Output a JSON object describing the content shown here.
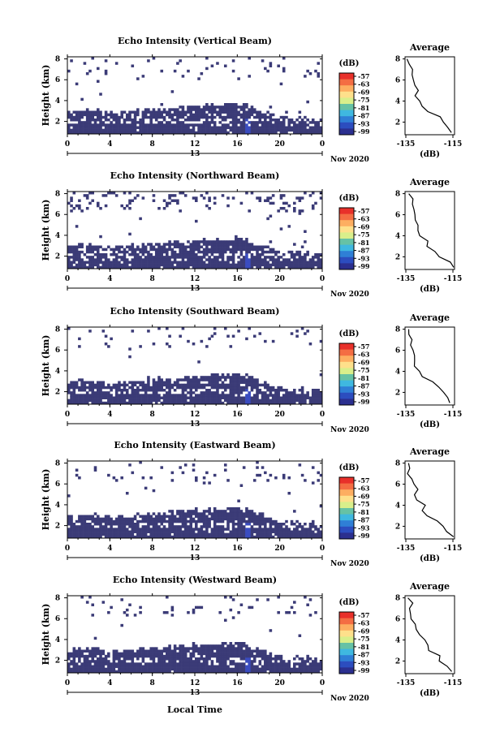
{
  "panels": [
    {
      "title": "Echo Intensity (Vertical Beam)",
      "seed": 11
    },
    {
      "title": "Echo Intensity (Northward Beam)",
      "seed": 23
    },
    {
      "title": "Echo Intensity (Southward Beam)",
      "seed": 37
    },
    {
      "title": "Echo Intensity (Eastward Beam)",
      "seed": 41
    },
    {
      "title": "Echo Intensity (Westward Beam)",
      "seed": 53
    }
  ],
  "ylabel": "Height (km)",
  "xlabel": "Local Time",
  "date_label": "Nov 2020",
  "day_label": "13",
  "colorbar": {
    "unit": "(dB)",
    "ticks": [
      "-57",
      "-63",
      "-69",
      "-75",
      "-81",
      "-87",
      "-93",
      "-99"
    ],
    "colors": [
      "#e8302a",
      "#f46d43",
      "#fdae61",
      "#fee08b",
      "#d9ef8b",
      "#66c2a5",
      "#3fb8e0",
      "#2f7fd6",
      "#2c4dbf",
      "#2b2f8f"
    ]
  },
  "avg_title": "Average",
  "avg_xlabel": "(dB)",
  "avg_xticks": [
    "-135",
    "-115"
  ],
  "chart_data": {
    "type": "heatmap",
    "x_ticks": [
      "0",
      "4",
      "8",
      "12",
      "16",
      "20",
      "0"
    ],
    "y_ticks": [
      "2",
      "4",
      "6",
      "8"
    ],
    "xlim": [
      0,
      24
    ],
    "ylim": [
      0.8,
      8.2
    ],
    "color_range": [
      -99,
      -57
    ],
    "average_profile": {
      "xlim": [
        -135,
        -115
      ],
      "height": [
        1,
        1.5,
        2,
        2.5,
        3,
        3.5,
        4,
        4.5,
        5,
        5.5,
        6,
        6.5,
        7,
        7.5,
        8
      ],
      "value": [
        -116,
        -117,
        -120,
        -122,
        -125,
        -127,
        -128,
        -130,
        -130,
        -131,
        -132,
        -132,
        -133,
        -133,
        -134
      ]
    }
  }
}
